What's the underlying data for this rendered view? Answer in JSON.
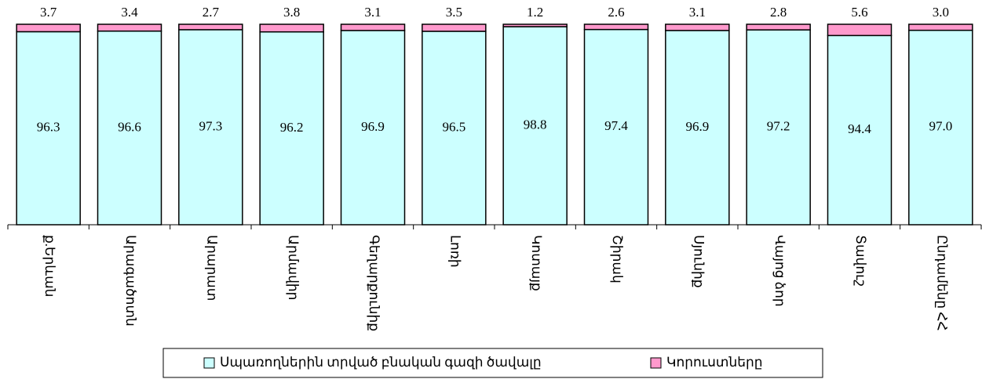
{
  "chart_data": {
    "type": "stacked_bar",
    "categories": [
      "ք.Երևան",
      "Արագածոտն",
      "Արարատ",
      "Արմավիր",
      "Գեղարքունիք",
      "Լոռի",
      "Կոտայք",
      "Շիրակ",
      "Սյունիք",
      "Վայոց ձոր",
      "Տավուշ",
      "Ընդամենը ՀՀ"
    ],
    "series": [
      {
        "name": "Սպառողներին տրված բնական գազի ծավալը",
        "color": "#ccffff",
        "values": [
          96.3,
          96.6,
          97.3,
          96.2,
          96.9,
          96.5,
          98.8,
          97.4,
          96.9,
          97.2,
          94.4,
          97.0
        ],
        "value_labels": [
          "96.3",
          "96.6",
          "97.3",
          "96.2",
          "96.9",
          "96.5",
          "98.8",
          "97.4",
          "96.9",
          "97.2",
          "94.4",
          "97.0"
        ]
      },
      {
        "name": "Կորուստները",
        "color": "#ff99cc",
        "values": [
          3.7,
          3.4,
          2.7,
          3.8,
          3.1,
          3.5,
          1.2,
          2.6,
          3.1,
          2.8,
          5.6,
          3.0
        ],
        "value_labels": [
          "3.7",
          "3.4",
          "2.7",
          "3.8",
          "3.1",
          "3.5",
          "1.2",
          "2.6",
          "3.1",
          "2.8",
          "5.6",
          "3.0"
        ]
      }
    ],
    "ylim": [
      0,
      100
    ],
    "legend": "bottom"
  }
}
